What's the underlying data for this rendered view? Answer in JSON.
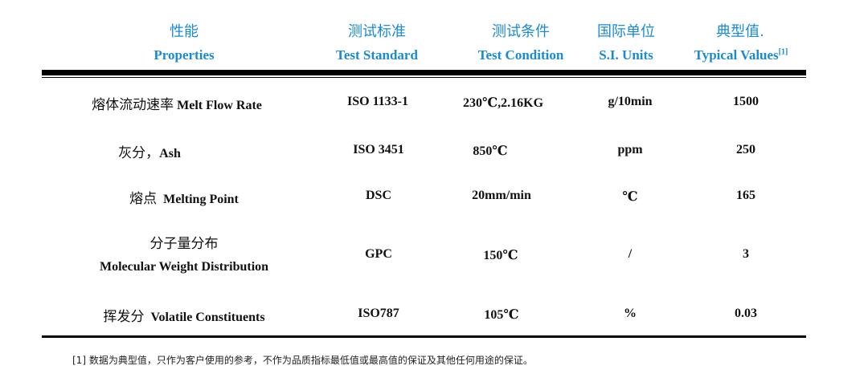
{
  "header": {
    "columns": [
      {
        "cn": "性能",
        "en": "Properties"
      },
      {
        "cn": "测试标准",
        "en": "Test Standard"
      },
      {
        "cn": "测试条件",
        "en": "Test Condition"
      },
      {
        "cn": "国际单位",
        "en": "S.I. Units"
      },
      {
        "cn": "典型值.",
        "en": "Typical Values",
        "sup": "[1]"
      }
    ]
  },
  "rows": [
    {
      "prop_cn": "熔体流动速率",
      "prop_en": "Melt Flow Rate",
      "standard": "ISO 1133-1",
      "condition": "230℃,2.16KG",
      "unit": "g/10min",
      "value": "1500"
    },
    {
      "prop_cn": "灰分，",
      "prop_en": "Ash",
      "standard": "ISO 3451",
      "condition": "850℃",
      "unit": "ppm",
      "value": "250"
    },
    {
      "prop_cn": "熔点",
      "prop_en": "Melting Point",
      "standard": "DSC",
      "condition": "20mm/min",
      "unit": "℃",
      "value": "165"
    },
    {
      "prop_cn": "分子量分布",
      "prop_en": "Molecular Weight Distribution",
      "standard": "GPC",
      "condition": "150℃",
      "unit": "/",
      "value": "3"
    },
    {
      "prop_cn": "挥发分",
      "prop_en": "Volatile Constituents",
      "standard": "ISO787",
      "condition": "105℃",
      "unit": "%",
      "value": "0.03"
    }
  ],
  "footnote": "[1]  数据为典型值，只作为客户使用的参考，不作为品质指标最低值或最高值的保证及其他任何用途的保证。",
  "colors": {
    "header": "#1a8ad4",
    "rule": "#000000"
  }
}
